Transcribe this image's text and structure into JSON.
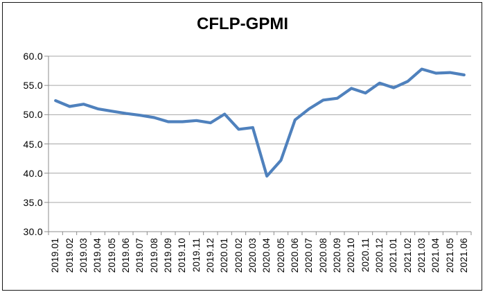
{
  "chart_data": {
    "type": "line",
    "title": "CFLP-GPMI",
    "categories": [
      "2019.01",
      "2019.02",
      "2019.03",
      "2019.04",
      "2019.05",
      "2019.06",
      "2019.07",
      "2019.08",
      "2019.09",
      "2019.10",
      "2019.11",
      "2019.12",
      "2020.01",
      "2020.02",
      "2020.03",
      "2020.04",
      "2020.05",
      "2020.06",
      "2020.07",
      "2020.08",
      "2020.09",
      "2020.10",
      "2020.11",
      "2020.12",
      "2021.01",
      "2021.02",
      "2021.03",
      "2021.04",
      "2021.05",
      "2021.06"
    ],
    "series": [
      {
        "name": "CFLP-GPMI",
        "values": [
          52.4,
          51.4,
          51.8,
          51.0,
          50.6,
          50.2,
          49.9,
          49.5,
          48.8,
          48.8,
          49.0,
          48.6,
          50.1,
          47.5,
          47.8,
          39.5,
          42.2,
          49.1,
          51.0,
          52.5,
          52.8,
          54.5,
          53.7,
          55.4,
          54.6,
          55.7,
          57.8,
          57.1,
          57.2,
          56.8
        ]
      }
    ],
    "xlabel": "",
    "ylabel": "",
    "ylim": [
      30.0,
      60.0
    ],
    "y_ticks": [
      60,
      55,
      50,
      45,
      40,
      35,
      30
    ],
    "y_tick_labels": [
      "60.0",
      "55.0",
      "50.0",
      "45.0",
      "40.0",
      "35.0",
      "30.0"
    ],
    "x_tick_rotation": 90,
    "grid": "horizontal",
    "legend_position": "none",
    "colors": {
      "line": "#4F81BD",
      "gridline": "#A6A6A6",
      "axis": "#8C8C8C",
      "text": "#000000",
      "frame_border": "#161616",
      "background": "#FFFFFF"
    }
  }
}
